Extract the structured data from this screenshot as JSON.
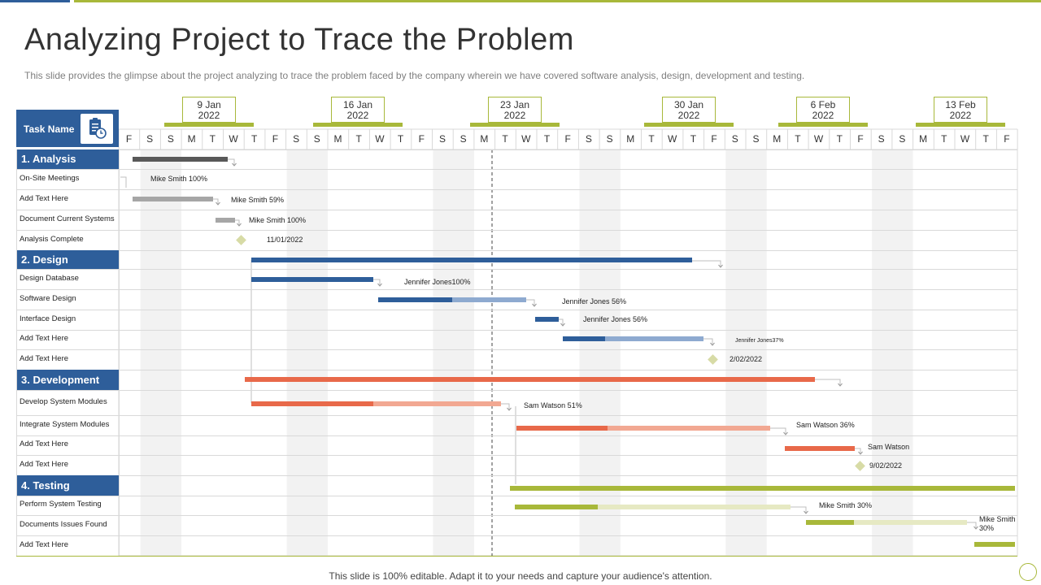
{
  "title": "Analyzing Project to Trace the Problem",
  "subtitle": "This slide provides the glimpse about the project analyzing to trace the problem faced by the company wherein we have covered software analysis, design, development and testing.",
  "footer": "This slide is 100% editable. Adapt it to your needs and capture your audience's attention.",
  "task_header": "Task Name",
  "colors": {
    "blue": "#2e5e9a",
    "green": "#a8b83a",
    "orange": "#e8694a",
    "gray": "#a6a6a6",
    "dark": "#595959"
  },
  "date_markers": [
    {
      "day": "9 Jan",
      "year": "2022"
    },
    {
      "day": "16 Jan",
      "year": "2022"
    },
    {
      "day": "23 Jan",
      "year": "2022"
    },
    {
      "day": "30 Jan",
      "year": "2022"
    },
    {
      "day": "6 Feb",
      "year": "2022"
    },
    {
      "day": "13 Feb",
      "year": "2022"
    }
  ],
  "days": [
    "F",
    "S",
    "S",
    "M",
    "T",
    "W",
    "T",
    "F",
    "S",
    "S",
    "M",
    "T",
    "W",
    "T",
    "F",
    "S",
    "S",
    "M",
    "T",
    "W",
    "T",
    "F",
    "S",
    "S",
    "M",
    "T",
    "W",
    "T",
    "F",
    "S",
    "S",
    "M",
    "T",
    "W",
    "T",
    "F",
    "S",
    "S",
    "M",
    "T",
    "W",
    "T",
    "F"
  ],
  "sections": [
    {
      "label": "1.   Analysis",
      "tasks": [
        {
          "label": "On-Site Meetings",
          "note": "Mike Smith 100%"
        },
        {
          "label": "Add Text Here",
          "note": "Mike Smith 59%"
        },
        {
          "label": "Document Current Systems",
          "note": "Mike Smith 100%"
        },
        {
          "label": "Analysis Complete",
          "note": "11/01/2022"
        }
      ]
    },
    {
      "label": "2.   Design",
      "tasks": [
        {
          "label": "Design Database",
          "note": "Jennifer Jones100%"
        },
        {
          "label": "Software Design",
          "note": "Jennifer Jones 56%"
        },
        {
          "label": "Interface Design",
          "note": "Jennifer Jones 56%"
        },
        {
          "label": "Add Text Here",
          "note": "Jennifer  Jones37%"
        },
        {
          "label": "Add Text Here",
          "note": "2/02/2022"
        }
      ]
    },
    {
      "label": "3.   Development",
      "tasks": [
        {
          "label": "Develop System Modules",
          "note": "Sam Watson 51%"
        },
        {
          "label": "Integrate System Modules",
          "note": "Sam Watson 36%"
        },
        {
          "label": "Add Text Here",
          "note": "Sam Watson"
        },
        {
          "label": "Add Text Here",
          "note": "9/02/2022"
        }
      ]
    },
    {
      "label": "4.   Testing",
      "tasks": [
        {
          "label": "Perform System Testing",
          "note": "Mike Smith 30%"
        },
        {
          "label": "Documents Issues Found",
          "note": "Mike Smith 30%"
        },
        {
          "label": "Add Text Here",
          "note": ""
        }
      ]
    }
  ]
}
